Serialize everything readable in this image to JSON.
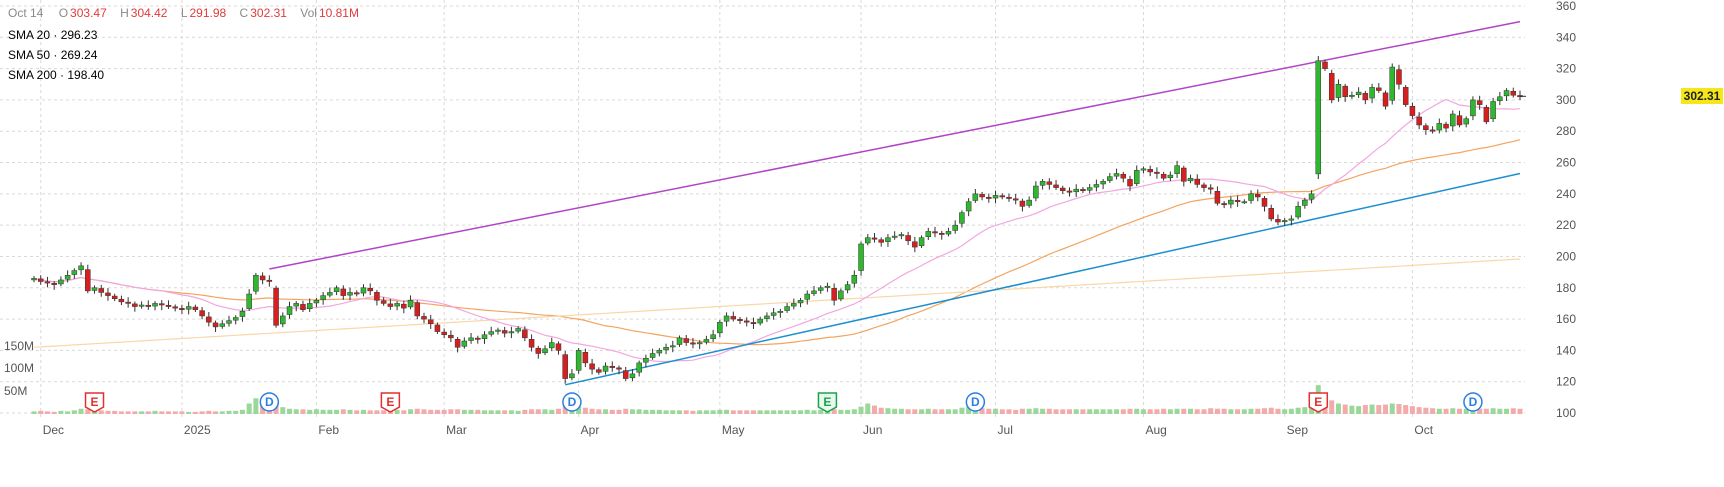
{
  "header": {
    "date": "Oct 14",
    "open_label": "O",
    "open": "303.47",
    "high_label": "H",
    "high": "304.42",
    "low_label": "L",
    "low": "291.98",
    "close_label": "C",
    "close": "302.31",
    "vol_label": "Vol",
    "vol": "10.81M"
  },
  "sma": [
    {
      "label": "SMA 20",
      "value": "296.23",
      "color": "#f2a6e0"
    },
    {
      "label": "SMA 50",
      "value": "269.24",
      "color": "#f4a460"
    },
    {
      "label": "SMA 200",
      "value": "198.40",
      "color": "#f8d8a8"
    }
  ],
  "price_badge": "302.31",
  "colors": {
    "up": "#2fb82f",
    "down": "#d62020",
    "grid": "#d9d9d9",
    "trend_upper": "#b044c8",
    "trend_lower": "#1c8fd0",
    "vol_up": "#9ad89a",
    "vol_down": "#f2aaaa"
  },
  "chart_data": {
    "type": "candlestick",
    "x_ticks": [
      "Dec",
      "2025",
      "Feb",
      "Mar",
      "Apr",
      "May",
      "Jun",
      "Jul",
      "Aug",
      "Sep",
      "Oct"
    ],
    "y_ticks": [
      "360",
      "340",
      "320",
      "300",
      "280",
      "260",
      "240",
      "220",
      "200",
      "180",
      "160",
      "140",
      "120",
      "100"
    ],
    "ylim": [
      100,
      360
    ],
    "volume_ticks": [
      "150M",
      "100M",
      "50M"
    ],
    "grid": true,
    "last_price": 302.31,
    "markers": [
      {
        "letter": "E",
        "kind": "earnings",
        "month": "Dec"
      },
      {
        "letter": "D",
        "kind": "dividend",
        "month": "Jan"
      },
      {
        "letter": "E",
        "kind": "earnings",
        "month": "Mar"
      },
      {
        "letter": "D",
        "kind": "dividend",
        "month": "Apr"
      },
      {
        "letter": "E",
        "kind": "earnings",
        "month": "Jun"
      },
      {
        "letter": "D",
        "kind": "dividend",
        "month": "Jul"
      },
      {
        "letter": "E",
        "kind": "earnings",
        "month": "Sep"
      },
      {
        "letter": "D",
        "kind": "dividend",
        "month": "Oct"
      }
    ],
    "trendlines": [
      {
        "name": "upper",
        "start": [
          "Jan 22",
          192
        ],
        "end": [
          "Oct 17",
          350
        ]
      },
      {
        "name": "lower",
        "start": [
          "Apr 7",
          118
        ],
        "end": [
          "Oct 17",
          253
        ]
      }
    ],
    "closes": [
      186,
      184,
      183,
      182,
      185,
      188,
      191,
      194,
      178,
      180,
      177,
      175,
      173,
      171,
      170,
      168,
      169,
      168,
      170,
      169,
      168,
      167,
      166,
      168,
      166,
      162,
      158,
      155,
      157,
      159,
      161,
      165,
      176,
      188,
      185,
      184,
      156,
      162,
      168,
      170,
      166,
      170,
      172,
      175,
      177,
      180,
      175,
      177,
      176,
      180,
      178,
      172,
      170,
      168,
      170,
      167,
      172,
      162,
      160,
      157,
      152,
      150,
      148,
      142,
      146,
      148,
      147,
      150,
      152,
      153,
      151,
      152,
      154,
      148,
      142,
      138,
      141,
      145,
      140,
      122,
      125,
      140,
      132,
      128,
      126,
      130,
      129,
      128,
      122,
      125,
      132,
      135,
      138,
      140,
      142,
      143,
      148,
      145,
      144,
      145,
      147,
      150,
      158,
      162,
      160,
      159,
      158,
      157,
      160,
      162,
      164,
      165,
      168,
      170,
      172,
      176,
      178,
      180,
      181,
      172,
      178,
      182,
      188,
      208,
      212,
      211,
      209,
      212,
      213,
      214,
      210,
      206,
      212,
      216,
      215,
      214,
      216,
      220,
      228,
      235,
      240,
      238,
      237,
      239,
      238,
      237,
      236,
      232,
      236,
      245,
      248,
      246,
      244,
      242,
      241,
      243,
      242,
      244,
      246,
      248,
      251,
      253,
      250,
      245,
      255,
      256,
      254,
      253,
      250,
      252,
      258,
      248,
      250,
      246,
      244,
      243,
      234,
      233,
      236,
      235,
      235,
      240,
      238,
      232,
      224,
      222,
      223,
      224,
      232,
      236,
      240,
      325,
      320,
      300,
      310,
      302,
      303,
      305,
      300,
      308,
      306,
      296,
      321,
      310,
      297,
      290,
      284,
      281,
      280,
      285,
      282,
      291,
      284,
      288,
      300,
      297,
      286,
      299,
      302,
      306,
      303,
      302
    ],
    "volume": [
      5,
      6,
      5,
      4,
      6,
      5,
      7,
      10,
      9,
      8,
      7,
      6,
      6,
      5,
      5,
      5,
      5,
      5,
      6,
      5,
      5,
      5,
      5,
      4,
      4,
      5,
      6,
      5,
      5,
      6,
      6,
      8,
      20,
      30,
      22,
      21,
      24,
      13,
      10,
      9,
      9,
      8,
      9,
      8,
      8,
      8,
      9,
      8,
      7,
      8,
      7,
      7,
      7,
      8,
      8,
      7,
      9,
      10,
      9,
      8,
      8,
      8,
      9,
      9,
      8,
      8,
      8,
      7,
      7,
      7,
      7,
      7,
      6,
      8,
      9,
      9,
      9,
      8,
      10,
      18,
      16,
      14,
      12,
      10,
      9,
      9,
      8,
      8,
      10,
      9,
      9,
      8,
      8,
      8,
      7,
      7,
      7,
      7,
      6,
      7,
      7,
      7,
      8,
      8,
      7,
      7,
      7,
      7,
      7,
      7,
      7,
      7,
      7,
      7,
      7,
      8,
      7,
      8,
      8,
      9,
      8,
      8,
      9,
      14,
      20,
      16,
      12,
      11,
      10,
      10,
      9,
      9,
      9,
      10,
      9,
      9,
      9,
      9,
      12,
      14,
      12,
      11,
      10,
      10,
      9,
      9,
      8,
      10,
      10,
      11,
      10,
      10,
      9,
      9,
      9,
      9,
      9,
      9,
      9,
      9,
      9,
      9,
      9,
      10,
      10,
      9,
      9,
      9,
      10,
      9,
      10,
      10,
      10,
      9,
      9,
      11,
      10,
      10,
      9,
      9,
      9,
      10,
      10,
      11,
      12,
      10,
      9,
      10,
      12,
      13,
      20,
      55,
      30,
      26,
      20,
      18,
      16,
      15,
      17,
      18,
      17,
      18,
      20,
      19,
      17,
      15,
      13,
      12,
      11,
      10,
      10,
      11,
      10,
      10,
      11,
      10,
      10,
      11,
      10,
      10,
      11,
      10
    ]
  }
}
